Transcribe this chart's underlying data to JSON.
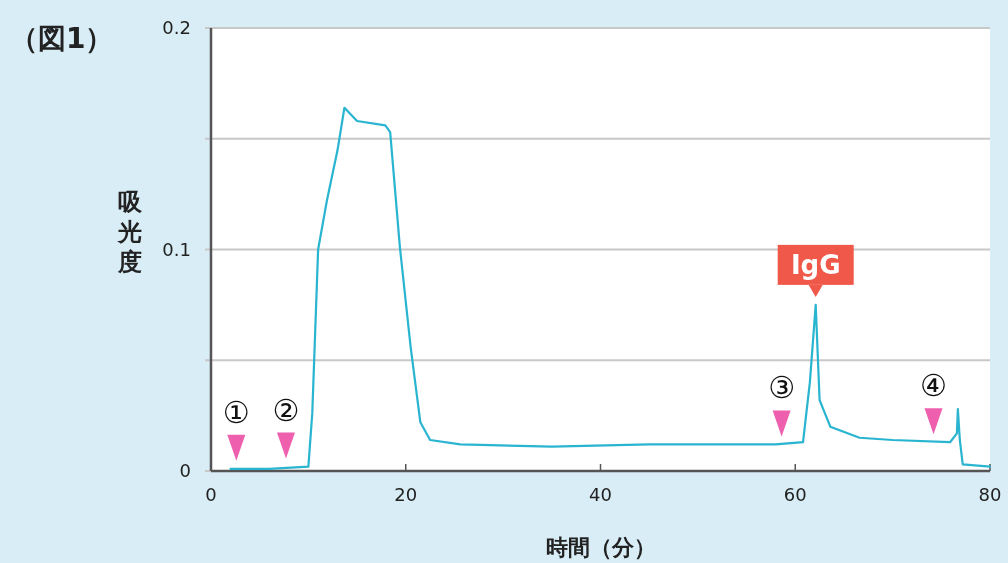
{
  "chart_data": {
    "type": "line",
    "title": "（図1）",
    "xlabel": "時間（分）",
    "ylabel": "吸光度",
    "xlim": [
      0,
      80
    ],
    "xticks": [
      0,
      20,
      40,
      60,
      80
    ],
    "ylim": [
      0,
      0.2
    ],
    "yticks": [
      0,
      {
        "value": 0.05,
        "label": null
      },
      0.1,
      {
        "value": 0.15,
        "label": null
      },
      0.2
    ],
    "grid": "y",
    "series": [
      {
        "color": "#29b4d0",
        "x": [
          2,
          6,
          10,
          10.4,
          11,
          11.9,
          13,
          13.7,
          15,
          17.9,
          18.4,
          19.4,
          20.5,
          21.5,
          22.5,
          25.6,
          35,
          45,
          58,
          60.8,
          61.5,
          62.1,
          62.5,
          63.6,
          66.6,
          70,
          75.9,
          76.6,
          76.7,
          76.9,
          77.2,
          80
        ],
        "values": [
          0.001,
          0.001,
          0.002,
          0.026,
          0.1,
          0.122,
          0.145,
          0.164,
          0.158,
          0.156,
          0.153,
          0.101,
          0.056,
          0.022,
          0.014,
          0.012,
          0.011,
          0.012,
          0.012,
          0.013,
          0.04,
          0.075,
          0.032,
          0.02,
          0.015,
          0.014,
          0.013,
          0.017,
          0.028,
          0.014,
          0.003,
          0.002
        ]
      }
    ],
    "annotations": [
      {
        "text": "①",
        "x": 2.6,
        "y": 0.001
      },
      {
        "text": "②",
        "x": 7.7,
        "y": 0.002
      },
      {
        "text": "③",
        "x": 58.6,
        "y": 0.012
      },
      {
        "text": "④",
        "x": 74.2,
        "y": 0.013
      },
      {
        "text": "IgG",
        "x": 62.1,
        "y": 0.075
      }
    ]
  }
}
